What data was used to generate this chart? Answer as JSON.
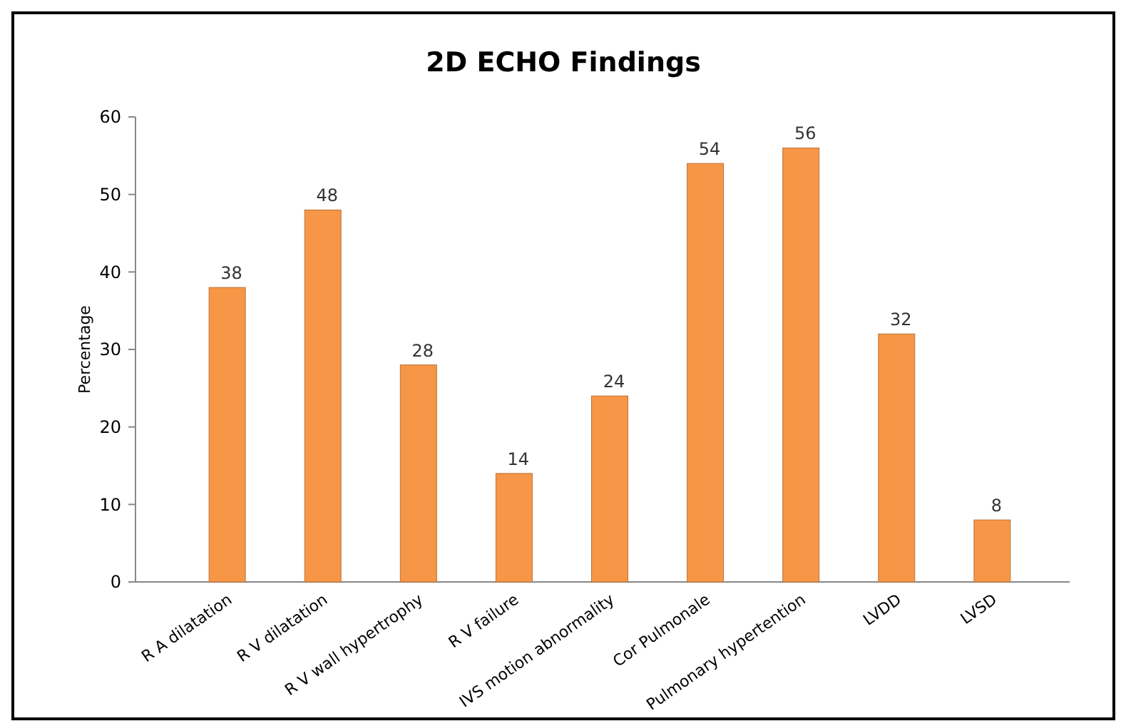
{
  "chart_data": {
    "type": "bar",
    "title": "2D ECHO Findings",
    "ylabel": "Percentage",
    "categories": [
      "R A dilatation",
      "R V dilatation",
      "R V wall hypertrophy",
      "R V failure",
      "IVS motion abnormality",
      "Cor Pulmonale",
      "Pulmonary hypertention",
      "LVDD",
      "LVSD"
    ],
    "values": [
      38,
      48,
      28,
      14,
      24,
      54,
      56,
      32,
      8
    ],
    "color": "#f79646",
    "data_labels": true,
    "ylim": [
      0,
      60
    ],
    "yticks": [
      0,
      10,
      20,
      30,
      40,
      50,
      60
    ],
    "grid": false
  }
}
